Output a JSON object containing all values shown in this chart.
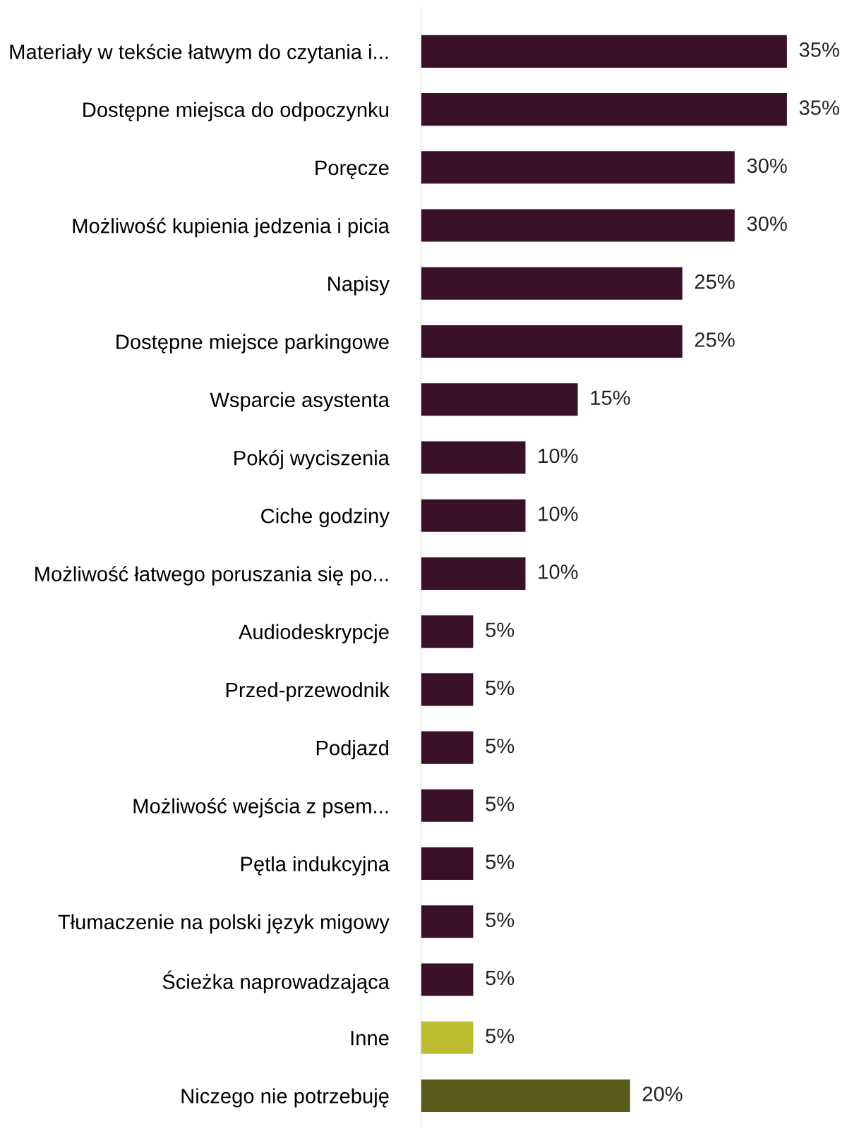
{
  "chart_data": {
    "type": "bar",
    "orientation": "horizontal",
    "categories": [
      "Materiały w tekście łatwym do czytania i...",
      "Dostępne miejsca do odpoczynku",
      "Poręcze",
      "Możliwość kupienia jedzenia i picia",
      "Napisy",
      "Dostępne miejsce parkingowe",
      "Wsparcie asystenta",
      "Pokój wyciszenia",
      "Ciche godziny",
      "Możliwość łatwego poruszania się po...",
      "Audiodeskrypcje",
      "Przed-przewodnik",
      "Podjazd",
      "Możliwość wejścia z psem...",
      "Pętla indukcyjna",
      "Tłumaczenie na polski język migowy",
      "Ścieżka naprowadzająca",
      "Inne",
      "Niczego nie potrzebuję"
    ],
    "values": [
      35,
      35,
      30,
      30,
      25,
      25,
      15,
      10,
      10,
      10,
      5,
      5,
      5,
      5,
      5,
      5,
      5,
      5,
      20
    ],
    "value_labels": [
      "35%",
      "35%",
      "30%",
      "30%",
      "25%",
      "25%",
      "15%",
      "10%",
      "10%",
      "10%",
      "5%",
      "5%",
      "5%",
      "5%",
      "5%",
      "5%",
      "5%",
      "5%",
      "20%"
    ],
    "colors": [
      "#3a0f2a",
      "#3a0f2a",
      "#3a0f2a",
      "#3a0f2a",
      "#3a0f2a",
      "#3a0f2a",
      "#3a0f2a",
      "#3a0f2a",
      "#3a0f2a",
      "#3a0f2a",
      "#3a0f2a",
      "#3a0f2a",
      "#3a0f2a",
      "#3a0f2a",
      "#3a0f2a",
      "#3a0f2a",
      "#3a0f2a",
      "#bcbc30",
      "#5a5a1a"
    ],
    "grid": false,
    "legend": false
  }
}
